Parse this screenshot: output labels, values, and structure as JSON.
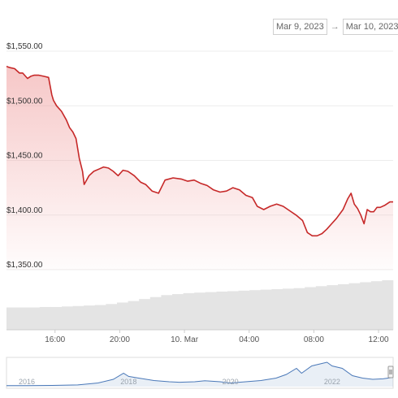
{
  "date_range": {
    "from": "Mar 9, 2023",
    "arrow": "→",
    "to": "Mar 10, 2023"
  },
  "colors": {
    "price_line": "#c62828",
    "fill": "#ef9a9a",
    "volume": "#e4e4e4",
    "navigator": "#4a78b8"
  },
  "chart_data": {
    "type": "line",
    "y_ticks": [
      "$1,550.00",
      "$1,500.00",
      "$1,450.00",
      "$1,400.00",
      "$1,350.00"
    ],
    "y_tick_values": [
      1550,
      1500,
      1450,
      1400,
      1350
    ],
    "ylim": [
      1350,
      1560
    ],
    "x_ticks": [
      "16:00",
      "20:00",
      "10. Mar",
      "04:00",
      "08:00",
      "12:00"
    ],
    "x_tick_hours": [
      16,
      20,
      24,
      28,
      32,
      36
    ],
    "xlim_hours": [
      13.0,
      36.9
    ],
    "grid": true,
    "series": [
      {
        "x_hours": [
          13.0,
          13.2,
          13.5,
          13.8,
          14.0,
          14.3,
          14.5,
          14.7,
          15.0,
          15.3,
          15.6,
          15.8,
          15.9,
          16.1,
          16.4,
          16.7,
          16.9,
          17.1,
          17.3,
          17.5,
          17.7,
          17.8,
          18.1,
          18.4,
          18.7,
          19.0,
          19.3,
          19.6,
          19.9,
          20.2,
          20.5,
          20.9,
          21.3,
          21.6,
          22.0,
          22.4,
          22.8,
          23.3,
          23.8,
          24.2,
          24.6,
          25.0,
          25.4,
          25.8,
          26.2,
          26.6,
          27.0,
          27.4,
          27.8,
          28.2,
          28.5,
          28.9,
          29.3,
          29.7,
          30.1,
          30.5,
          30.9,
          31.3,
          31.6,
          31.9,
          32.2,
          32.5,
          32.8,
          33.1,
          33.4,
          33.8,
          34.1,
          34.3,
          34.5,
          34.7,
          34.9,
          35.1,
          35.3,
          35.5,
          35.7,
          35.9,
          36.1,
          36.4,
          36.7,
          36.9
        ],
        "y": [
          1536,
          1535,
          1534,
          1530,
          1530,
          1525,
          1527,
          1528,
          1528,
          1527,
          1526,
          1510,
          1505,
          1500,
          1495,
          1487,
          1480,
          1476,
          1470,
          1452,
          1440,
          1428,
          1436,
          1440,
          1442,
          1444,
          1443,
          1440,
          1436,
          1441,
          1440,
          1436,
          1430,
          1428,
          1422,
          1420,
          1432,
          1434,
          1433,
          1431,
          1432,
          1429,
          1427,
          1423,
          1421,
          1422,
          1425,
          1423,
          1418,
          1416,
          1408,
          1405,
          1408,
          1410,
          1408,
          1404,
          1400,
          1395,
          1384,
          1381,
          1381,
          1383,
          1387,
          1392,
          1397,
          1405,
          1415,
          1420,
          1410,
          1406,
          1400,
          1392,
          1405,
          1403,
          1403,
          1407,
          1407,
          1409,
          1412,
          1412
        ]
      }
    ],
    "volume": [
      0.45,
      0.45,
      0.45,
      0.46,
      0.46,
      0.47,
      0.48,
      0.49,
      0.5,
      0.52,
      0.55,
      0.58,
      0.62,
      0.66,
      0.7,
      0.72,
      0.74,
      0.75,
      0.76,
      0.77,
      0.78,
      0.79,
      0.8,
      0.81,
      0.82,
      0.83,
      0.84,
      0.86,
      0.88,
      0.9,
      0.92,
      0.94,
      0.96,
      0.98,
      1.0
    ],
    "navigator": {
      "x_ticks": [
        "2016",
        "2018",
        "2020",
        "2022"
      ],
      "x_tick_years": [
        2016,
        2018,
        2020,
        2022
      ],
      "xlim_years": [
        2015.6,
        2023.2
      ],
      "years": [
        2015.6,
        2016.0,
        2016.5,
        2017.0,
        2017.4,
        2017.7,
        2017.9,
        2018.0,
        2018.2,
        2018.5,
        2018.8,
        2019.0,
        2019.3,
        2019.5,
        2019.8,
        2020.0,
        2020.3,
        2020.6,
        2020.9,
        2021.1,
        2021.3,
        2021.4,
        2021.6,
        2021.8,
        2021.9,
        2022.0,
        2022.2,
        2022.4,
        2022.6,
        2022.8,
        2023.0,
        2023.2
      ],
      "values": [
        0.04,
        0.04,
        0.05,
        0.07,
        0.15,
        0.3,
        0.55,
        0.42,
        0.35,
        0.25,
        0.2,
        0.18,
        0.2,
        0.24,
        0.2,
        0.15,
        0.2,
        0.25,
        0.35,
        0.5,
        0.75,
        0.55,
        0.85,
        0.95,
        1.0,
        0.85,
        0.75,
        0.45,
        0.35,
        0.3,
        0.32,
        0.38
      ]
    }
  }
}
